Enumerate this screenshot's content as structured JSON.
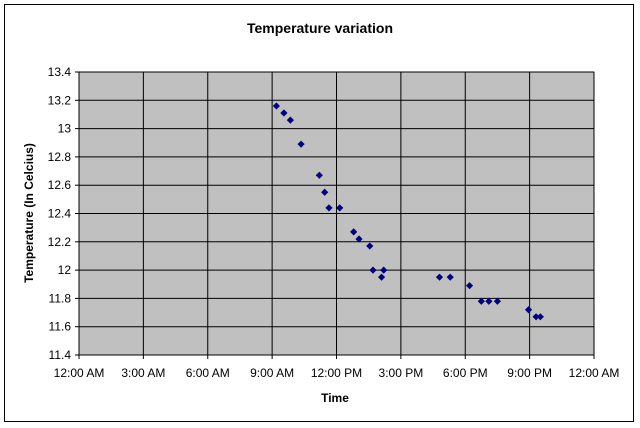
{
  "chart_data": {
    "type": "scatter",
    "title": "Temperature variation",
    "xlabel": "Time",
    "ylabel": "Temperature (In Celcius)",
    "xlim": [
      0,
      24
    ],
    "ylim": [
      11.4,
      13.4
    ],
    "x_ticks": [
      {
        "value": 0,
        "label": "12:00 AM"
      },
      {
        "value": 3,
        "label": "3:00 AM"
      },
      {
        "value": 6,
        "label": "6:00 AM"
      },
      {
        "value": 9,
        "label": "9:00 AM"
      },
      {
        "value": 12,
        "label": "12:00 PM"
      },
      {
        "value": 15,
        "label": "3:00 PM"
      },
      {
        "value": 18,
        "label": "6:00 PM"
      },
      {
        "value": 21,
        "label": "9:00 PM"
      },
      {
        "value": 24,
        "label": "12:00 AM"
      }
    ],
    "y_ticks": [
      {
        "value": 11.4,
        "label": "11.4"
      },
      {
        "value": 11.6,
        "label": "11.6"
      },
      {
        "value": 11.8,
        "label": "11.8"
      },
      {
        "value": 12.0,
        "label": "12"
      },
      {
        "value": 12.2,
        "label": "12.2"
      },
      {
        "value": 12.4,
        "label": "12.4"
      },
      {
        "value": 12.6,
        "label": "12.6"
      },
      {
        "value": 12.8,
        "label": "12.8"
      },
      {
        "value": 13.0,
        "label": "13"
      },
      {
        "value": 13.2,
        "label": "13.2"
      },
      {
        "value": 13.4,
        "label": "13.4"
      }
    ],
    "grid": true,
    "legend": "none",
    "colors": {
      "plot_background": "#c0c0c0",
      "marker": "#000080",
      "gridline": "#000000"
    },
    "series": [
      {
        "marker": "diamond",
        "points": [
          {
            "x": 9.2,
            "y": 13.16
          },
          {
            "x": 9.55,
            "y": 13.11
          },
          {
            "x": 9.85,
            "y": 13.06
          },
          {
            "x": 10.35,
            "y": 12.89
          },
          {
            "x": 11.2,
            "y": 12.67
          },
          {
            "x": 11.45,
            "y": 12.55
          },
          {
            "x": 11.65,
            "y": 12.44
          },
          {
            "x": 12.15,
            "y": 12.44
          },
          {
            "x": 12.8,
            "y": 12.27
          },
          {
            "x": 13.05,
            "y": 12.22
          },
          {
            "x": 13.55,
            "y": 12.17
          },
          {
            "x": 13.7,
            "y": 12.0
          },
          {
            "x": 14.1,
            "y": 11.95
          },
          {
            "x": 14.2,
            "y": 12.0
          },
          {
            "x": 16.8,
            "y": 11.95
          },
          {
            "x": 17.3,
            "y": 11.95
          },
          {
            "x": 18.2,
            "y": 11.89
          },
          {
            "x": 18.75,
            "y": 11.78
          },
          {
            "x": 19.1,
            "y": 11.78
          },
          {
            "x": 19.5,
            "y": 11.78
          },
          {
            "x": 20.95,
            "y": 11.72
          },
          {
            "x": 21.3,
            "y": 11.67
          },
          {
            "x": 21.5,
            "y": 11.67
          }
        ]
      }
    ]
  }
}
